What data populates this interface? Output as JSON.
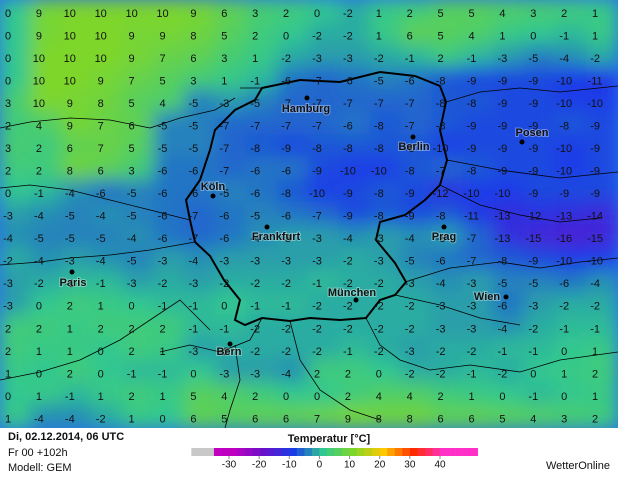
{
  "map": {
    "grid": [
      [
        0,
        9,
        10,
        10,
        10,
        10,
        9,
        6,
        3,
        2,
        0,
        -2,
        1,
        2,
        5,
        5,
        4,
        3,
        2,
        1
      ],
      [
        0,
        9,
        10,
        10,
        9,
        9,
        8,
        5,
        2,
        0,
        -2,
        -2,
        1,
        6,
        5,
        4,
        1,
        0,
        -1,
        1
      ],
      [
        0,
        10,
        10,
        10,
        9,
        7,
        6,
        3,
        1,
        -2,
        -3,
        -3,
        -2,
        -1,
        2,
        -1,
        -3,
        -5,
        -4,
        -2
      ],
      [
        0,
        10,
        10,
        9,
        7,
        5,
        3,
        1,
        -1,
        -6,
        -7,
        -6,
        -5,
        -6,
        -8,
        -9,
        -9,
        -9,
        -10,
        -11
      ],
      [
        3,
        10,
        9,
        8,
        5,
        4,
        -5,
        -3,
        -5,
        -7,
        -7,
        -7,
        -7,
        -7,
        -8,
        -8,
        -9,
        -9,
        -10,
        -10
      ],
      [
        2,
        4,
        9,
        7,
        6,
        -5,
        -5,
        -7,
        -7,
        -7,
        -7,
        -6,
        -8,
        -7,
        -8,
        -9,
        -9,
        -9,
        -8,
        -9
      ],
      [
        3,
        2,
        6,
        7,
        5,
        -5,
        -5,
        -7,
        -8,
        -9,
        -8,
        -8,
        -8,
        -8,
        -10,
        -9,
        -9,
        -9,
        -10,
        -9
      ],
      [
        2,
        2,
        8,
        6,
        3,
        -6,
        -6,
        -7,
        -6,
        -6,
        -9,
        -10,
        -10,
        -8,
        -7,
        -8,
        -9,
        -9,
        -10,
        -9
      ],
      [
        0,
        -1,
        -4,
        -6,
        -5,
        -6,
        -6,
        -5,
        -6,
        -8,
        -10,
        -9,
        -8,
        -9,
        -12,
        -10,
        -10,
        -9,
        -9,
        -9
      ],
      [
        -3,
        -4,
        -5,
        -4,
        -5,
        -6,
        -7,
        -6,
        -5,
        -6,
        -7,
        -9,
        -8,
        -9,
        -8,
        -11,
        -13,
        -12,
        -13,
        -14
      ],
      [
        -4,
        -5,
        -5,
        -5,
        -4,
        -6,
        -7,
        -6,
        -4,
        -3,
        -3,
        -4,
        -3,
        -4,
        -3,
        -7,
        -13,
        -15,
        -16,
        -15
      ],
      [
        -2,
        -4,
        -3,
        -4,
        -5,
        -3,
        -4,
        -3,
        -3,
        -3,
        -3,
        -2,
        -3,
        -5,
        -6,
        -7,
        -8,
        -9,
        -10,
        -10
      ],
      [
        -3,
        -2,
        -1,
        -1,
        -3,
        -2,
        -3,
        -2,
        -2,
        -2,
        -1,
        -2,
        -2,
        -3,
        -4,
        -3,
        -5,
        -5,
        -6,
        -4
      ],
      [
        -3,
        0,
        2,
        1,
        0,
        -1,
        -1,
        0,
        -1,
        -1,
        -2,
        -2,
        -2,
        -2,
        -3,
        -3,
        -6,
        -3,
        -2,
        -2
      ],
      [
        2,
        2,
        1,
        2,
        2,
        2,
        -1,
        -1,
        -2,
        -2,
        -2,
        -2,
        -2,
        -2,
        -3,
        -3,
        -4,
        -2,
        -1,
        -1
      ],
      [
        2,
        1,
        1,
        0,
        2,
        1,
        -3,
        -2,
        -2,
        -2,
        -2,
        -1,
        -2,
        -3,
        -2,
        -2,
        -1,
        -1,
        0,
        1
      ],
      [
        1,
        0,
        2,
        0,
        -1,
        -1,
        0,
        -3,
        -3,
        -4,
        2,
        2,
        0,
        -2,
        -2,
        -1,
        -2,
        0,
        1,
        2
      ],
      [
        0,
        1,
        -1,
        1,
        2,
        1,
        5,
        4,
        2,
        0,
        0,
        2,
        4,
        4,
        2,
        1,
        0,
        -1,
        0,
        1
      ],
      [
        1,
        -4,
        -4,
        -2,
        1,
        0,
        6,
        5,
        6,
        6,
        7,
        9,
        8,
        8,
        6,
        6,
        5,
        4,
        3,
        2
      ]
    ],
    "cities": [
      "Hamburg",
      "Berlin",
      "Posen",
      "Köln",
      "Frankfurt",
      "Prag",
      "Paris",
      "München",
      "Wien",
      "Bern"
    ]
  },
  "footer": {
    "run": "Di, 02.12.2014, 06 UTC",
    "forecast": "Fr 00 +102h",
    "model": "Modell: GEM",
    "legend_title": "Temperatur [°C]",
    "legend_ticks": [
      -30,
      -20,
      -10,
      0,
      10,
      20,
      30,
      40
    ],
    "brand": "WetterOnline"
  }
}
